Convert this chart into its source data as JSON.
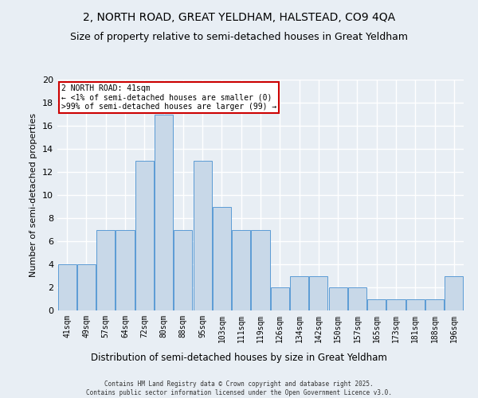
{
  "title": "2, NORTH ROAD, GREAT YELDHAM, HALSTEAD, CO9 4QA",
  "subtitle": "Size of property relative to semi-detached houses in Great Yeldham",
  "xlabel": "Distribution of semi-detached houses by size in Great Yeldham",
  "ylabel": "Number of semi-detached properties",
  "categories": [
    "41sqm",
    "49sqm",
    "57sqm",
    "64sqm",
    "72sqm",
    "80sqm",
    "88sqm",
    "95sqm",
    "103sqm",
    "111sqm",
    "119sqm",
    "126sqm",
    "134sqm",
    "142sqm",
    "150sqm",
    "157sqm",
    "165sqm",
    "173sqm",
    "181sqm",
    "188sqm",
    "196sqm"
  ],
  "values": [
    4,
    4,
    7,
    7,
    13,
    17,
    7,
    13,
    9,
    7,
    7,
    2,
    3,
    3,
    2,
    2,
    1,
    1,
    1,
    1,
    3
  ],
  "bar_color": "#c8d8e8",
  "bar_edge_color": "#5b9bd5",
  "annotation_box_color": "#ffffff",
  "annotation_border_color": "#cc0000",
  "annotation_line1": "2 NORTH ROAD: 41sqm",
  "annotation_line2": "← <1% of semi-detached houses are smaller (0)",
  "annotation_line3": ">99% of semi-detached houses are larger (99) →",
  "footer": "Contains HM Land Registry data © Crown copyright and database right 2025.\nContains public sector information licensed under the Open Government Licence v3.0.",
  "ylim": [
    0,
    20
  ],
  "yticks": [
    0,
    2,
    4,
    6,
    8,
    10,
    12,
    14,
    16,
    18,
    20
  ],
  "background_color": "#e8eef4",
  "grid_color": "#ffffff",
  "title_fontsize": 10,
  "subtitle_fontsize": 9,
  "highlight_bar_index": 0
}
